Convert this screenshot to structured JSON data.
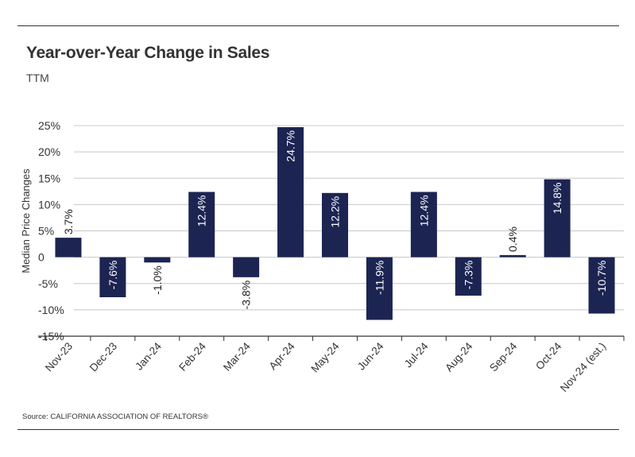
{
  "header": {
    "title": "Year-over-Year Change in Sales",
    "subtitle": "TTM"
  },
  "footer": {
    "source": "Source:  CALIFORNIA ASSOCIATION OF REALTORS®"
  },
  "colors": {
    "bar": "#1c2452",
    "grid": "#c8c8c8",
    "axis": "#333333"
  },
  "chart_data": {
    "type": "bar",
    "title": "Year-over-Year Change in Sales",
    "subtitle": "TTM",
    "xlabel": "",
    "ylabel": "Median Price Changes",
    "categories": [
      "Nov-23",
      "Dec-23",
      "Jan-24",
      "Feb-24",
      "Mar-24",
      "Apr-24",
      "May-24",
      "Jun-24",
      "Jul-24",
      "Aug-24",
      "Sep-24",
      "Oct-24",
      "Nov-24 (est.)"
    ],
    "values": [
      3.7,
      -7.6,
      -1.0,
      12.4,
      -3.8,
      24.7,
      12.2,
      -11.9,
      12.4,
      -7.3,
      0.4,
      14.8,
      -10.7
    ],
    "data_labels": [
      "3.7%",
      "-7.6%",
      "-1.0%",
      "12.4%",
      "-3.8%",
      "24.7%",
      "12.2%",
      "-11.9%",
      "12.4%",
      "-7.3%",
      "0.4%",
      "14.8%",
      "-10.7%"
    ],
    "ylim": [
      -15,
      25
    ],
    "yticks": [
      25,
      20,
      15,
      10,
      5,
      0,
      -5,
      -10,
      -15
    ],
    "ytick_labels": [
      "25%",
      "20%",
      "15%",
      "10%",
      "5%",
      "0",
      "-5%",
      "-10%",
      "-15%"
    ],
    "grid": true,
    "legend": "none"
  }
}
